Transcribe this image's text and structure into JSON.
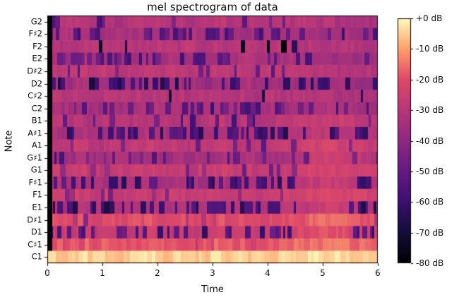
{
  "chart_data": {
    "type": "heatmap",
    "title": "mel spectrogram of data",
    "xlabel": "Time",
    "ylabel": "Note",
    "x_ticks": [
      0,
      1,
      2,
      3,
      4,
      5,
      6
    ],
    "x_range": [
      0,
      6
    ],
    "time_bin_s": 0.25,
    "grid": false,
    "text_color": "#111111",
    "spine_color": "#000000",
    "background_color": "#ffffff",
    "colormap": "magma",
    "colormap_stops": [
      [
        0.0,
        "#000004"
      ],
      [
        0.125,
        "#140e36"
      ],
      [
        0.25,
        "#3b0f70"
      ],
      [
        0.375,
        "#641a80"
      ],
      [
        0.5,
        "#8c2981"
      ],
      [
        0.625,
        "#b73779"
      ],
      [
        0.75,
        "#de4968"
      ],
      [
        0.875,
        "#fe9f6d"
      ],
      [
        1.0,
        "#fcfdbf"
      ]
    ],
    "colorbar": {
      "tick_labels": [
        "+0 dB",
        "-10 dB",
        "-20 dB",
        "-30 dB",
        "-40 dB",
        "-50 dB",
        "-60 dB",
        "-70 dB",
        "-80 dB"
      ],
      "range_db": [
        0,
        -80
      ]
    },
    "onset_black": {
      "duration_s": 0.075,
      "db": -80,
      "skip_last_row": true
    },
    "rows": [
      {
        "note": "G2",
        "levels_db": [
          -30,
          -31,
          -29,
          -32,
          -30,
          -33,
          -30,
          -29,
          -31,
          -30,
          -32,
          -30,
          -29,
          -31,
          -30,
          -32,
          -30,
          -31,
          -29,
          -32,
          -31,
          -33,
          -32,
          -34
        ],
        "stripe_density": 0.14,
        "stripe_db": -50,
        "calm": null
      },
      {
        "note": "F♯2",
        "levels_db": [
          -33,
          -32,
          -35,
          -33,
          -34,
          -32,
          -34,
          -35,
          -33,
          -34,
          -32,
          -35,
          -34,
          -33,
          -35,
          -34,
          -32,
          -35,
          -33,
          -34,
          -35,
          -35,
          -34,
          -36
        ],
        "stripe_density": 0.46,
        "stripe_db": -54,
        "calm": null
      },
      {
        "note": "F2",
        "levels_db": [
          -29,
          -31,
          -30,
          -28,
          -31,
          -29,
          -30,
          -31,
          -29,
          -30,
          -28,
          -31,
          -30,
          -29,
          -31,
          -30,
          -29,
          -30,
          -31,
          -29,
          -32,
          -31,
          -30,
          -32
        ],
        "stripe_density": 0.07,
        "stripe_db": -72,
        "calm": null
      },
      {
        "note": "E2",
        "levels_db": [
          -33,
          -35,
          -32,
          -34,
          -36,
          -33,
          -34,
          -32,
          -35,
          -33,
          -34,
          -36,
          -33,
          -34,
          -32,
          -35,
          -34,
          -33,
          -35,
          -34,
          -36,
          -34,
          -35,
          -36
        ],
        "stripe_density": 0.32,
        "stripe_db": -52,
        "calm": null
      },
      {
        "note": "D♯2",
        "levels_db": [
          -28,
          -29,
          -27,
          -30,
          -28,
          -29,
          -28,
          -27,
          -29,
          -28,
          -30,
          -28,
          -27,
          -29,
          -28,
          -30,
          -28,
          -29,
          -28,
          -30,
          -29,
          -31,
          -30,
          -31
        ],
        "stripe_density": 0.12,
        "stripe_db": -48,
        "calm": null
      },
      {
        "note": "D2",
        "levels_db": [
          -34,
          -36,
          -33,
          -35,
          -37,
          -34,
          -35,
          -33,
          -36,
          -34,
          -35,
          -37,
          -34,
          -35,
          -33,
          -36,
          -35,
          -34,
          -36,
          -35,
          -37,
          -35,
          -36,
          -37
        ],
        "stripe_density": 0.42,
        "stripe_db": -62,
        "calm": null
      },
      {
        "note": "C♯2",
        "levels_db": [
          -30,
          -31,
          -29,
          -32,
          -30,
          -31,
          -30,
          -29,
          -31,
          -30,
          -32,
          -30,
          -29,
          -31,
          -30,
          -32,
          -30,
          -31,
          -30,
          -32,
          -31,
          -33,
          -32,
          -33
        ],
        "stripe_density": 0.08,
        "stripe_db": -70,
        "calm": null
      },
      {
        "note": "C2",
        "levels_db": [
          -33,
          -34,
          -32,
          -35,
          -33,
          -34,
          -33,
          -32,
          -34,
          -33,
          -35,
          -33,
          -32,
          -34,
          -33,
          -35,
          -33,
          -34,
          -33,
          -32,
          -32,
          -33,
          -34,
          -35
        ],
        "stripe_density": 0.32,
        "stripe_db": -52,
        "calm": null
      },
      {
        "note": "B1",
        "levels_db": [
          -30,
          -31,
          -29,
          -32,
          -30,
          -31,
          -30,
          -29,
          -31,
          -30,
          -32,
          -30,
          -29,
          -31,
          -30,
          -32,
          -30,
          -29,
          -27,
          -26,
          -25,
          -26,
          -27,
          -28
        ],
        "stripe_density": 0.16,
        "stripe_db": -52,
        "calm": [
          4.5,
          5.5
        ]
      },
      {
        "note": "A♯1",
        "levels_db": [
          -32,
          -34,
          -31,
          -33,
          -35,
          -32,
          -33,
          -31,
          -34,
          -32,
          -33,
          -35,
          -32,
          -33,
          -31,
          -34,
          -33,
          -31,
          -30,
          -29,
          -28,
          -29,
          -31,
          -32
        ],
        "stripe_density": 0.48,
        "stripe_db": -58,
        "calm": [
          4.5,
          5.5
        ]
      },
      {
        "note": "A1",
        "levels_db": [
          -28,
          -29,
          -27,
          -30,
          -28,
          -29,
          -28,
          -27,
          -29,
          -28,
          -30,
          -28,
          -27,
          -29,
          -28,
          -30,
          -28,
          -27,
          -25,
          -24,
          -23,
          -24,
          -25,
          -26
        ],
        "stripe_density": 0.1,
        "stripe_db": -46,
        "calm": [
          4.5,
          5.5
        ]
      },
      {
        "note": "G♯1",
        "levels_db": [
          -34,
          -36,
          -33,
          -36,
          -35,
          -34,
          -35,
          -33,
          -36,
          -34,
          -35,
          -36,
          -34,
          -35,
          -33,
          -36,
          -35,
          -33,
          -29,
          -26,
          -25,
          -26,
          -28,
          -30
        ],
        "stripe_density": 0.3,
        "stripe_db": -50,
        "calm": [
          4.5,
          5.5
        ]
      },
      {
        "note": "G1",
        "levels_db": [
          -26,
          -27,
          -25,
          -28,
          -26,
          -27,
          -26,
          -25,
          -27,
          -26,
          -28,
          -26,
          -25,
          -27,
          -26,
          -28,
          -26,
          -25,
          -24,
          -23,
          -22,
          -23,
          -24,
          -25
        ],
        "stripe_density": 0.11,
        "stripe_db": -44,
        "calm": [
          4.5,
          5.5
        ]
      },
      {
        "note": "F♯1",
        "levels_db": [
          -32,
          -34,
          -31,
          -33,
          -35,
          -32,
          -33,
          -31,
          -34,
          -32,
          -33,
          -35,
          -32,
          -33,
          -31,
          -34,
          -33,
          -30,
          -29,
          -27,
          -26,
          -27,
          -30,
          -32
        ],
        "stripe_density": 0.48,
        "stripe_db": -58,
        "calm": [
          4.5,
          5.5
        ]
      },
      {
        "note": "F1",
        "levels_db": [
          -26,
          -27,
          -25,
          -28,
          -26,
          -27,
          -26,
          -25,
          -27,
          -26,
          -28,
          -26,
          -25,
          -27,
          -26,
          -28,
          -26,
          -24,
          -23,
          -22,
          -21,
          -22,
          -23,
          -24
        ],
        "stripe_density": 0.08,
        "stripe_db": -42,
        "calm": [
          4.5,
          5.5
        ]
      },
      {
        "note": "E1",
        "levels_db": [
          -31,
          -33,
          -30,
          -32,
          -34,
          -31,
          -32,
          -30,
          -33,
          -31,
          -32,
          -34,
          -31,
          -32,
          -30,
          -33,
          -32,
          -29,
          -28,
          -26,
          -25,
          -26,
          -29,
          -31
        ],
        "stripe_density": 0.48,
        "stripe_db": -60,
        "calm": [
          4.5,
          5.5
        ]
      },
      {
        "note": "D♯1",
        "levels_db": [
          -20,
          -21,
          -19,
          -22,
          -20,
          -21,
          -20,
          -19,
          -21,
          -20,
          -22,
          -20,
          -19,
          -21,
          -20,
          -22,
          -20,
          -19,
          -18,
          -17,
          -16,
          -17,
          -18,
          -19
        ],
        "stripe_density": 0.08,
        "stripe_db": -34,
        "calm": [
          4.5,
          5.5
        ]
      },
      {
        "note": "D1",
        "levels_db": [
          -26,
          -27,
          -25,
          -28,
          -26,
          -27,
          -26,
          -25,
          -27,
          -26,
          -28,
          -26,
          -25,
          -27,
          -26,
          -28,
          -26,
          -24,
          -22,
          -20,
          -19,
          -20,
          -23,
          -25
        ],
        "stripe_density": 0.4,
        "stripe_db": -55,
        "calm": [
          4.5,
          5.5
        ]
      },
      {
        "note": "C♯1",
        "levels_db": [
          -18,
          -19,
          -17,
          -20,
          -18,
          -19,
          -18,
          -17,
          -19,
          -18,
          -20,
          -18,
          -17,
          -19,
          -18,
          -20,
          -18,
          -17,
          -16,
          -15,
          -14,
          -15,
          -16,
          -17
        ],
        "stripe_density": 0.04,
        "stripe_db": -26,
        "calm": [
          4.5,
          5.5
        ]
      },
      {
        "note": "C1",
        "levels_db": [
          -5,
          -6,
          -4,
          -6,
          -5,
          -6,
          -5,
          -4,
          -6,
          -5,
          -6,
          -5,
          -4,
          -6,
          -5,
          -6,
          -5,
          -4,
          -4,
          -3,
          -3,
          -3,
          -4,
          -4
        ],
        "stripe_density": 0.0,
        "stripe_db": -8,
        "calm": null
      }
    ]
  }
}
